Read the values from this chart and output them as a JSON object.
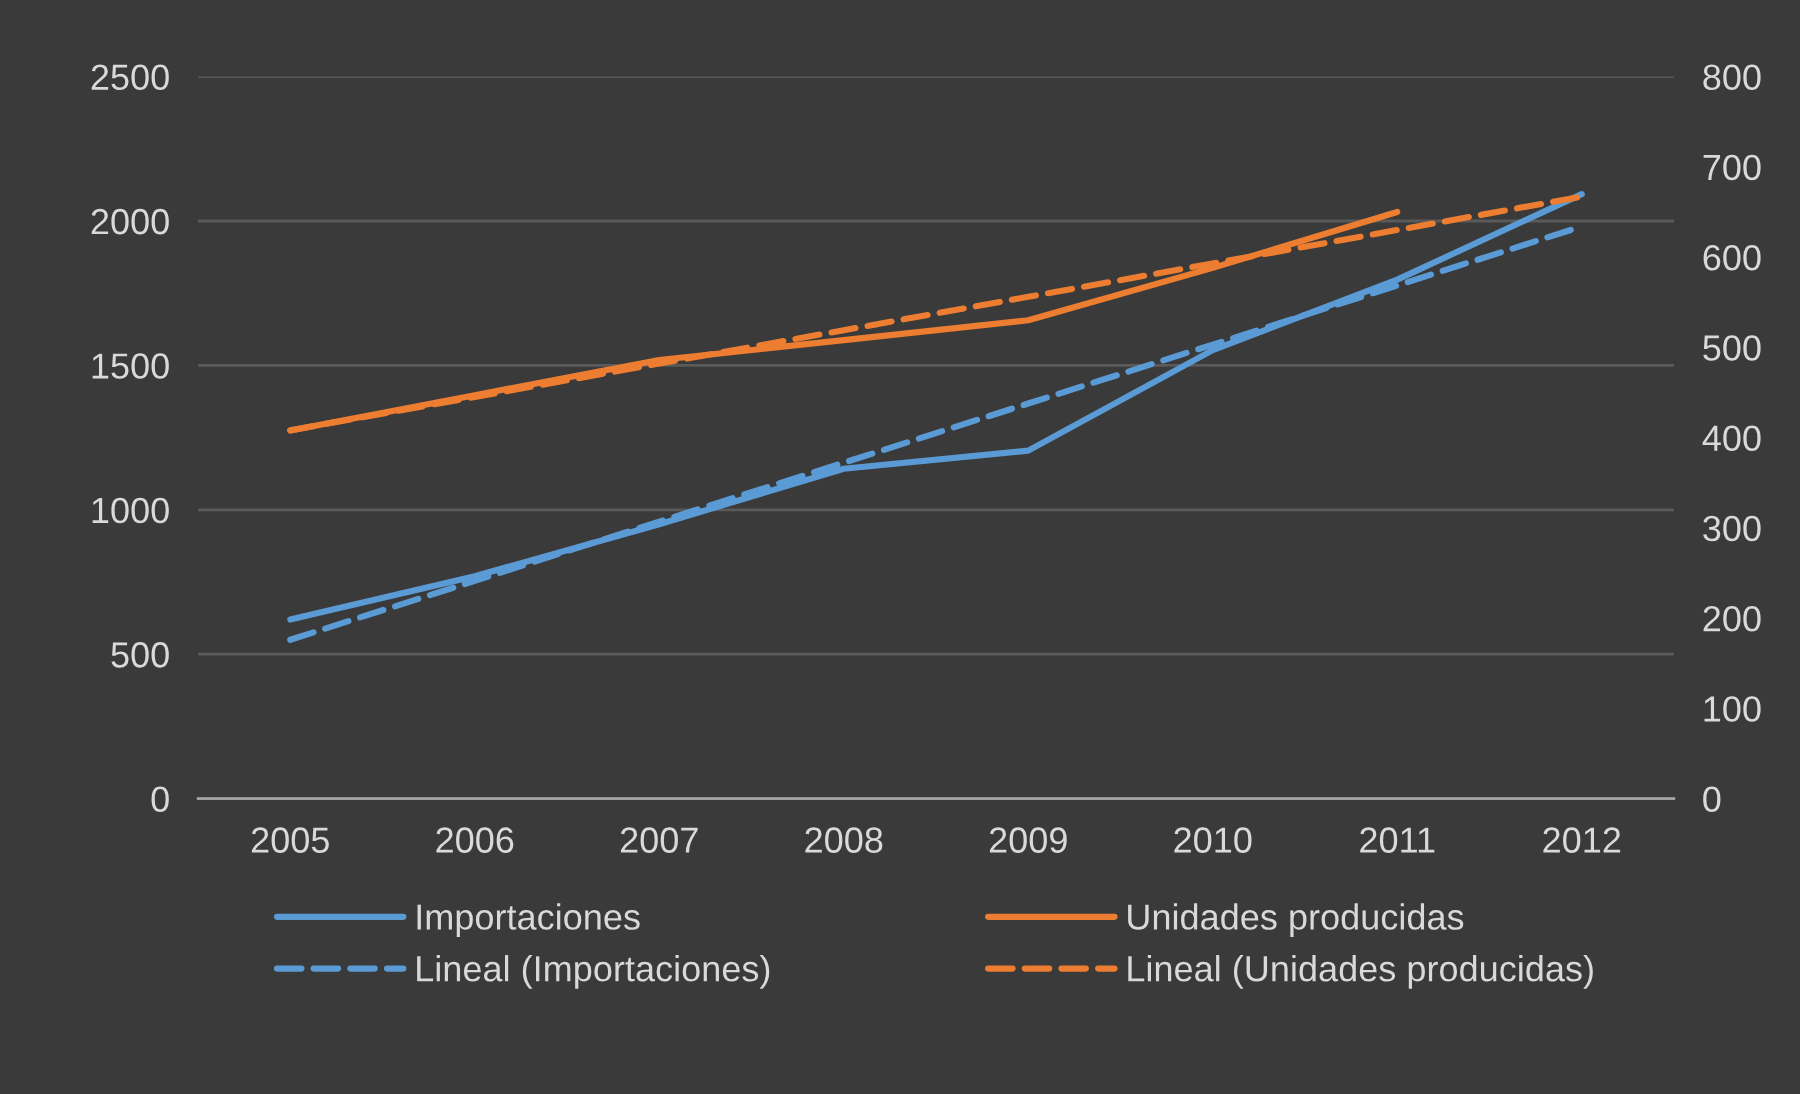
{
  "chart_data": {
    "type": "line",
    "categories": [
      "2005",
      "2006",
      "2007",
      "2008",
      "2009",
      "2010",
      "2011",
      "2012"
    ],
    "series": [
      {
        "name": "Importaciones",
        "color": "#5b9bd5",
        "values": [
          620,
          770,
          950,
          1142,
          1205,
          1553,
          1797,
          2093
        ]
      },
      {
        "name": "Unidades producidas",
        "color": "#ed7d31",
        "axis": "y2",
        "values": [
          408,
          447,
          486,
          508,
          530,
          588,
          650,
          null
        ]
      },
      {
        "name": "Lineal (Importaciones)",
        "color": "#5b9bd5",
        "values": [
          550,
          754,
          959,
          1163,
          1368,
          1572,
          1777,
          1981
        ],
        "line_style": "dashed"
      },
      {
        "name": "Lineal (Unidades producidas)",
        "color": "#ed7d31",
        "axis": "y2",
        "values": [
          408,
          445,
          482,
          519,
          556,
          593,
          630,
          667
        ],
        "line_style": "dashed"
      }
    ],
    "ylim": [
      0,
      2500
    ],
    "yticks": [
      0,
      500,
      1000,
      1500,
      2000,
      2500
    ],
    "y2lim": [
      0,
      800
    ],
    "y2ticks": [
      0,
      100,
      200,
      300,
      400,
      500,
      600,
      700,
      800
    ],
    "grid": "y",
    "legend": "bottom",
    "line_style": "solid"
  }
}
